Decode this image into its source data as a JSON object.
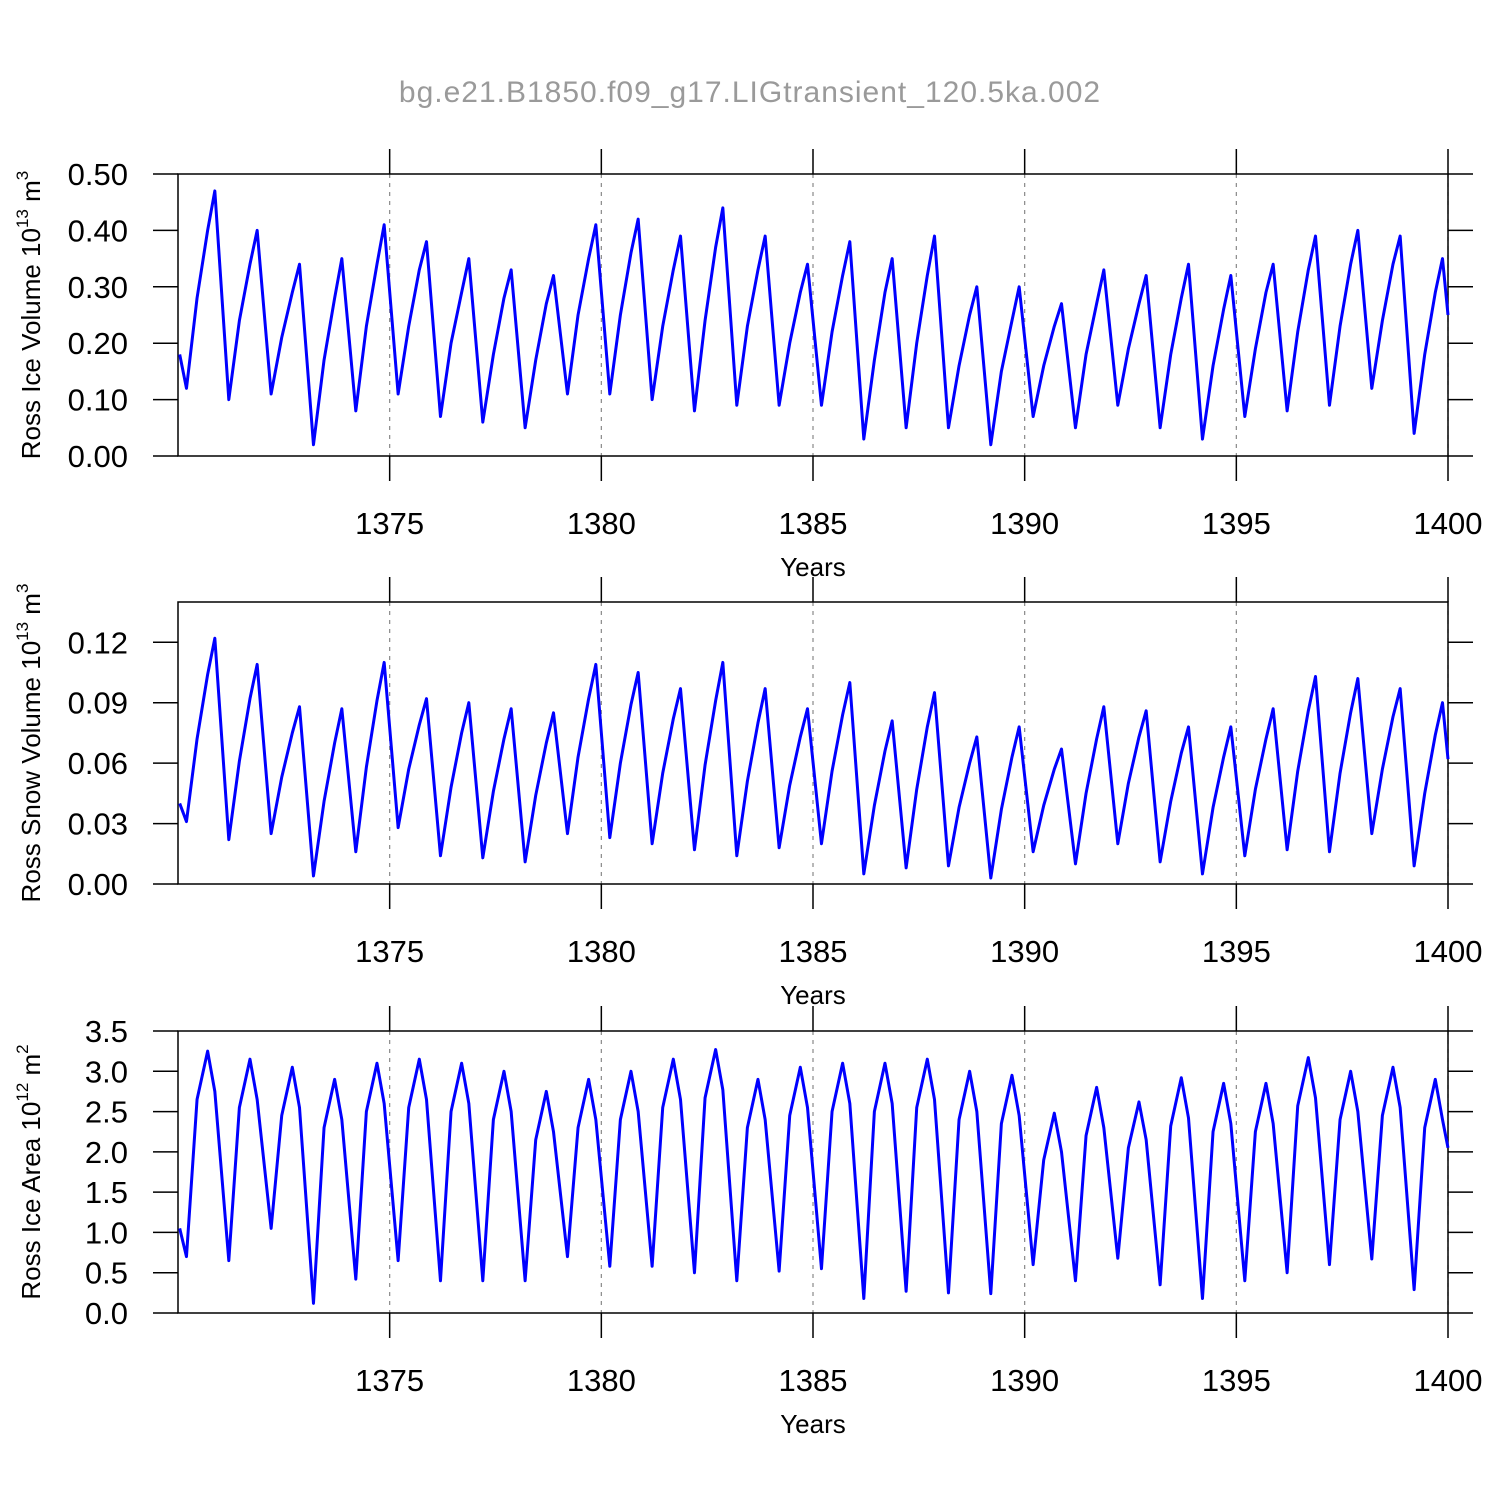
{
  "title": "bg.e21.B1850.f09_g17.LIGtransient_120.5ka.002",
  "chart_data": [
    {
      "type": "line",
      "xlabel": "Years",
      "ylabel": [
        "Ross Ice Volume 10",
        "13",
        " m",
        "3"
      ],
      "xlim": [
        1370,
        1400
      ],
      "xticks": [
        1375,
        1380,
        1385,
        1390,
        1395,
        1400
      ],
      "grid": true,
      "ylim": [
        0,
        0.5
      ],
      "yticks": [
        {
          "value": 0,
          "label": "0.00"
        },
        {
          "value": 0.1,
          "label": "0.10"
        },
        {
          "value": 0.2,
          "label": "0.20"
        },
        {
          "value": 0.3,
          "label": "0.30"
        },
        {
          "value": 0.4,
          "label": "0.40"
        },
        {
          "value": 0.5,
          "label": "0.50"
        }
      ],
      "x": [
        1370.04,
        1370.2,
        1370.45,
        1370.7,
        1370.87,
        1371.2,
        1371.45,
        1371.7,
        1371.87,
        1372.2,
        1372.45,
        1372.7,
        1372.87,
        1373.2,
        1373.45,
        1373.7,
        1373.87,
        1374.2,
        1374.45,
        1374.7,
        1374.87,
        1375.2,
        1375.45,
        1375.7,
        1375.87,
        1376.2,
        1376.45,
        1376.7,
        1376.87,
        1377.2,
        1377.45,
        1377.7,
        1377.87,
        1378.2,
        1378.45,
        1378.7,
        1378.87,
        1379.2,
        1379.45,
        1379.7,
        1379.87,
        1380.2,
        1380.45,
        1380.7,
        1380.87,
        1381.2,
        1381.45,
        1381.7,
        1381.87,
        1382.2,
        1382.45,
        1382.7,
        1382.87,
        1383.2,
        1383.45,
        1383.7,
        1383.87,
        1384.2,
        1384.45,
        1384.7,
        1384.87,
        1385.2,
        1385.45,
        1385.7,
        1385.87,
        1386.2,
        1386.45,
        1386.7,
        1386.87,
        1387.2,
        1387.45,
        1387.7,
        1387.87,
        1388.2,
        1388.45,
        1388.7,
        1388.87,
        1389.2,
        1389.45,
        1389.7,
        1389.87,
        1390.2,
        1390.45,
        1390.7,
        1390.87,
        1391.2,
        1391.45,
        1391.7,
        1391.87,
        1392.2,
        1392.45,
        1392.7,
        1392.87,
        1393.2,
        1393.45,
        1393.7,
        1393.87,
        1394.2,
        1394.45,
        1394.7,
        1394.87,
        1395.2,
        1395.45,
        1395.7,
        1395.87,
        1396.2,
        1396.45,
        1396.7,
        1396.87,
        1397.2,
        1397.45,
        1397.7,
        1397.87,
        1398.2,
        1398.45,
        1398.7,
        1398.87,
        1399.2,
        1399.45,
        1399.7,
        1399.87,
        1400
      ],
      "series": [
        {
          "color": "#0000ff",
          "values": [
            0.18,
            0.12,
            0.28,
            0.4,
            0.47,
            0.1,
            0.24,
            0.34,
            0.4,
            0.11,
            0.21,
            0.29,
            0.34,
            0.02,
            0.17,
            0.28,
            0.35,
            0.08,
            0.23,
            0.34,
            0.41,
            0.11,
            0.23,
            0.33,
            0.38,
            0.07,
            0.2,
            0.29,
            0.35,
            0.06,
            0.18,
            0.28,
            0.33,
            0.05,
            0.17,
            0.27,
            0.32,
            0.11,
            0.25,
            0.35,
            0.41,
            0.11,
            0.25,
            0.36,
            0.42,
            0.1,
            0.23,
            0.33,
            0.39,
            0.08,
            0.24,
            0.37,
            0.44,
            0.09,
            0.23,
            0.33,
            0.39,
            0.09,
            0.2,
            0.29,
            0.34,
            0.09,
            0.22,
            0.32,
            0.38,
            0.03,
            0.17,
            0.29,
            0.35,
            0.05,
            0.2,
            0.32,
            0.39,
            0.05,
            0.16,
            0.25,
            0.3,
            0.02,
            0.15,
            0.24,
            0.3,
            0.07,
            0.16,
            0.23,
            0.27,
            0.05,
            0.18,
            0.27,
            0.33,
            0.09,
            0.19,
            0.27,
            0.32,
            0.05,
            0.18,
            0.28,
            0.34,
            0.03,
            0.16,
            0.26,
            0.32,
            0.07,
            0.19,
            0.29,
            0.34,
            0.08,
            0.22,
            0.33,
            0.39,
            0.09,
            0.23,
            0.34,
            0.4,
            0.12,
            0.24,
            0.34,
            0.39,
            0.04,
            0.18,
            0.29,
            0.35,
            0.25
          ]
        }
      ]
    },
    {
      "type": "line",
      "xlabel": "Years",
      "ylabel": [
        "Ross Snow Volume 10",
        "13",
        " m",
        "3"
      ],
      "xlim": [
        1370,
        1400
      ],
      "xticks": [
        1375,
        1380,
        1385,
        1390,
        1395,
        1400
      ],
      "grid": true,
      "ylim": [
        0,
        0.14
      ],
      "yticks": [
        {
          "value": 0,
          "label": "0.00"
        },
        {
          "value": 0.03,
          "label": "0.03"
        },
        {
          "value": 0.06,
          "label": "0.06"
        },
        {
          "value": 0.09,
          "label": "0.09"
        },
        {
          "value": 0.12,
          "label": "0.12"
        }
      ],
      "x": [
        1370.04,
        1370.2,
        1370.45,
        1370.7,
        1370.87,
        1371.2,
        1371.45,
        1371.7,
        1371.87,
        1372.2,
        1372.45,
        1372.7,
        1372.87,
        1373.2,
        1373.45,
        1373.7,
        1373.87,
        1374.2,
        1374.45,
        1374.7,
        1374.87,
        1375.2,
        1375.45,
        1375.7,
        1375.87,
        1376.2,
        1376.45,
        1376.7,
        1376.87,
        1377.2,
        1377.45,
        1377.7,
        1377.87,
        1378.2,
        1378.45,
        1378.7,
        1378.87,
        1379.2,
        1379.45,
        1379.7,
        1379.87,
        1380.2,
        1380.45,
        1380.7,
        1380.87,
        1381.2,
        1381.45,
        1381.7,
        1381.87,
        1382.2,
        1382.45,
        1382.7,
        1382.87,
        1383.2,
        1383.45,
        1383.7,
        1383.87,
        1384.2,
        1384.45,
        1384.7,
        1384.87,
        1385.2,
        1385.45,
        1385.7,
        1385.87,
        1386.2,
        1386.45,
        1386.7,
        1386.87,
        1387.2,
        1387.45,
        1387.7,
        1387.87,
        1388.2,
        1388.45,
        1388.7,
        1388.87,
        1389.2,
        1389.45,
        1389.7,
        1389.87,
        1390.2,
        1390.45,
        1390.7,
        1390.87,
        1391.2,
        1391.45,
        1391.7,
        1391.87,
        1392.2,
        1392.45,
        1392.7,
        1392.87,
        1393.2,
        1393.45,
        1393.7,
        1393.87,
        1394.2,
        1394.45,
        1394.7,
        1394.87,
        1395.2,
        1395.45,
        1395.7,
        1395.87,
        1396.2,
        1396.45,
        1396.7,
        1396.87,
        1397.2,
        1397.45,
        1397.7,
        1397.87,
        1398.2,
        1398.45,
        1398.7,
        1398.87,
        1399.2,
        1399.45,
        1399.7,
        1399.87,
        1400
      ],
      "series": [
        {
          "color": "#0000ff",
          "values": [
            0.04,
            0.031,
            0.072,
            0.104,
            0.122,
            0.022,
            0.061,
            0.092,
            0.109,
            0.025,
            0.053,
            0.075,
            0.088,
            0.004,
            0.041,
            0.07,
            0.087,
            0.016,
            0.058,
            0.091,
            0.11,
            0.028,
            0.057,
            0.079,
            0.092,
            0.014,
            0.048,
            0.075,
            0.09,
            0.013,
            0.046,
            0.072,
            0.087,
            0.011,
            0.044,
            0.07,
            0.085,
            0.025,
            0.063,
            0.092,
            0.109,
            0.023,
            0.06,
            0.089,
            0.105,
            0.02,
            0.055,
            0.082,
            0.097,
            0.017,
            0.059,
            0.091,
            0.11,
            0.014,
            0.051,
            0.08,
            0.097,
            0.018,
            0.049,
            0.073,
            0.087,
            0.02,
            0.056,
            0.084,
            0.1,
            0.005,
            0.039,
            0.066,
            0.081,
            0.008,
            0.047,
            0.078,
            0.095,
            0.009,
            0.038,
            0.06,
            0.073,
            0.003,
            0.037,
            0.063,
            0.078,
            0.016,
            0.039,
            0.057,
            0.067,
            0.01,
            0.045,
            0.072,
            0.088,
            0.02,
            0.05,
            0.073,
            0.086,
            0.011,
            0.041,
            0.065,
            0.078,
            0.005,
            0.038,
            0.063,
            0.078,
            0.014,
            0.047,
            0.072,
            0.087,
            0.017,
            0.056,
            0.086,
            0.103,
            0.016,
            0.055,
            0.085,
            0.102,
            0.025,
            0.057,
            0.083,
            0.097,
            0.009,
            0.045,
            0.074,
            0.09,
            0.062
          ]
        }
      ]
    },
    {
      "type": "line",
      "xlabel": "Years",
      "ylabel": [
        "Ross Ice Area 10",
        "12",
        " m",
        "2"
      ],
      "xlim": [
        1370,
        1400
      ],
      "xticks": [
        1375,
        1380,
        1385,
        1390,
        1395,
        1400
      ],
      "grid": true,
      "ylim": [
        0,
        3.5
      ],
      "yticks": [
        {
          "value": 0,
          "label": "0.0"
        },
        0.5,
        {
          "value": 1,
          "label": "1.0"
        },
        1.5,
        {
          "value": 2,
          "label": "2.0"
        },
        2.5,
        {
          "value": 3,
          "label": "3.0"
        },
        3.5
      ],
      "x": [
        1370.04,
        1370.2,
        1370.45,
        1370.7,
        1370.87,
        1371.2,
        1371.45,
        1371.7,
        1371.87,
        1372.2,
        1372.45,
        1372.7,
        1372.87,
        1373.2,
        1373.45,
        1373.7,
        1373.87,
        1374.2,
        1374.45,
        1374.7,
        1374.87,
        1375.2,
        1375.45,
        1375.7,
        1375.87,
        1376.2,
        1376.45,
        1376.7,
        1376.87,
        1377.2,
        1377.45,
        1377.7,
        1377.87,
        1378.2,
        1378.45,
        1378.7,
        1378.87,
        1379.2,
        1379.45,
        1379.7,
        1379.87,
        1380.2,
        1380.45,
        1380.7,
        1380.87,
        1381.2,
        1381.45,
        1381.7,
        1381.87,
        1382.2,
        1382.45,
        1382.7,
        1382.87,
        1383.2,
        1383.45,
        1383.7,
        1383.87,
        1384.2,
        1384.45,
        1384.7,
        1384.87,
        1385.2,
        1385.45,
        1385.7,
        1385.87,
        1386.2,
        1386.45,
        1386.7,
        1386.87,
        1387.2,
        1387.45,
        1387.7,
        1387.87,
        1388.2,
        1388.45,
        1388.7,
        1388.87,
        1389.2,
        1389.45,
        1389.7,
        1389.87,
        1390.2,
        1390.45,
        1390.7,
        1390.87,
        1391.2,
        1391.45,
        1391.7,
        1391.87,
        1392.2,
        1392.45,
        1392.7,
        1392.87,
        1393.2,
        1393.45,
        1393.7,
        1393.87,
        1394.2,
        1394.45,
        1394.7,
        1394.87,
        1395.2,
        1395.45,
        1395.7,
        1395.87,
        1396.2,
        1396.45,
        1396.7,
        1396.87,
        1397.2,
        1397.45,
        1397.7,
        1397.87,
        1398.2,
        1398.45,
        1398.7,
        1398.87,
        1399.2,
        1399.45,
        1399.7,
        1399.87,
        1400
      ],
      "series": [
        {
          "color": "#0000ff",
          "values": [
            1.05,
            0.7,
            2.65,
            3.25,
            2.75,
            0.65,
            2.55,
            3.15,
            2.65,
            1.05,
            2.45,
            3.05,
            2.55,
            0.12,
            2.3,
            2.9,
            2.4,
            0.42,
            2.5,
            3.1,
            2.6,
            0.65,
            2.55,
            3.15,
            2.65,
            0.4,
            2.5,
            3.1,
            2.6,
            0.4,
            2.4,
            3.0,
            2.5,
            0.4,
            2.15,
            2.75,
            2.25,
            0.7,
            2.3,
            2.9,
            2.4,
            0.58,
            2.4,
            3.0,
            2.5,
            0.58,
            2.55,
            3.15,
            2.65,
            0.5,
            2.67,
            3.27,
            2.77,
            0.4,
            2.3,
            2.9,
            2.4,
            0.52,
            2.45,
            3.05,
            2.55,
            0.55,
            2.5,
            3.1,
            2.6,
            0.18,
            2.5,
            3.1,
            2.6,
            0.27,
            2.55,
            3.15,
            2.65,
            0.25,
            2.4,
            3.0,
            2.5,
            0.24,
            2.35,
            2.95,
            2.45,
            0.6,
            1.9,
            2.48,
            2.0,
            0.4,
            2.2,
            2.8,
            2.3,
            0.68,
            2.05,
            2.62,
            2.15,
            0.35,
            2.32,
            2.92,
            2.42,
            0.18,
            2.25,
            2.85,
            2.35,
            0.4,
            2.25,
            2.85,
            2.35,
            0.5,
            2.57,
            3.17,
            2.67,
            0.6,
            2.4,
            3.0,
            2.5,
            0.67,
            2.45,
            3.05,
            2.55,
            0.29,
            2.3,
            2.9,
            2.4,
            2.05
          ]
        }
      ]
    }
  ]
}
